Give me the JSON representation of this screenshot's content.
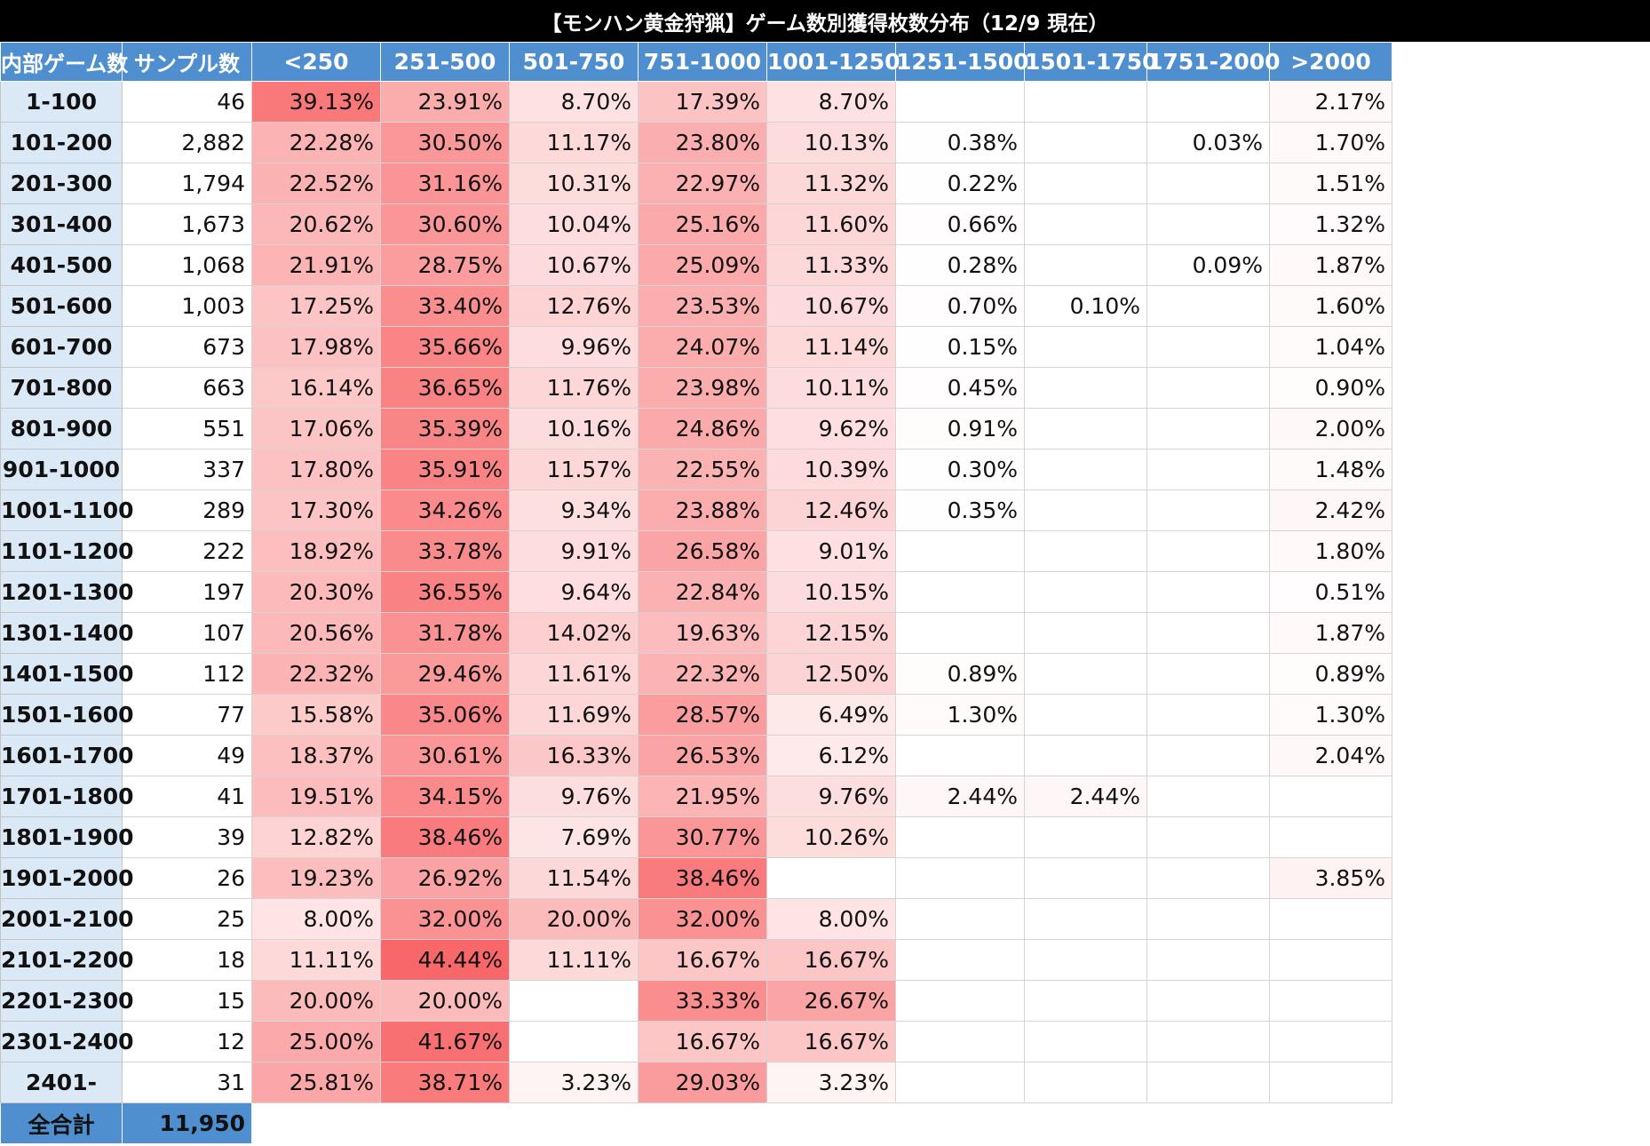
{
  "title": "【モンハン黄金狩猟】ゲーム数別獲得枚数分布（12/9 現在）",
  "headers": [
    "内部ゲーム数",
    "サンプル数",
    "<250",
    "251-500",
    "501-750",
    "751-1000",
    "1001-1250",
    "1251-1500",
    "1501-1750",
    "1751-2000",
    ">2000"
  ],
  "rows": [
    {
      "label": "1-100",
      "sample": "46",
      "cells": [
        "39.13%",
        "23.91%",
        "8.70%",
        "17.39%",
        "8.70%",
        "",
        "",
        "",
        "2.17%"
      ]
    },
    {
      "label": "101-200",
      "sample": "2,882",
      "cells": [
        "22.28%",
        "30.50%",
        "11.17%",
        "23.80%",
        "10.13%",
        "0.38%",
        "",
        "0.03%",
        "1.70%"
      ]
    },
    {
      "label": "201-300",
      "sample": "1,794",
      "cells": [
        "22.52%",
        "31.16%",
        "10.31%",
        "22.97%",
        "11.32%",
        "0.22%",
        "",
        "",
        "1.51%"
      ]
    },
    {
      "label": "301-400",
      "sample": "1,673",
      "cells": [
        "20.62%",
        "30.60%",
        "10.04%",
        "25.16%",
        "11.60%",
        "0.66%",
        "",
        "",
        "1.32%"
      ]
    },
    {
      "label": "401-500",
      "sample": "1,068",
      "cells": [
        "21.91%",
        "28.75%",
        "10.67%",
        "25.09%",
        "11.33%",
        "0.28%",
        "",
        "0.09%",
        "1.87%"
      ]
    },
    {
      "label": "501-600",
      "sample": "1,003",
      "cells": [
        "17.25%",
        "33.40%",
        "12.76%",
        "23.53%",
        "10.67%",
        "0.70%",
        "0.10%",
        "",
        "1.60%"
      ]
    },
    {
      "label": "601-700",
      "sample": "673",
      "cells": [
        "17.98%",
        "35.66%",
        "9.96%",
        "24.07%",
        "11.14%",
        "0.15%",
        "",
        "",
        "1.04%"
      ]
    },
    {
      "label": "701-800",
      "sample": "663",
      "cells": [
        "16.14%",
        "36.65%",
        "11.76%",
        "23.98%",
        "10.11%",
        "0.45%",
        "",
        "",
        "0.90%"
      ]
    },
    {
      "label": "801-900",
      "sample": "551",
      "cells": [
        "17.06%",
        "35.39%",
        "10.16%",
        "24.86%",
        "9.62%",
        "0.91%",
        "",
        "",
        "2.00%"
      ]
    },
    {
      "label": "901-1000",
      "sample": "337",
      "cells": [
        "17.80%",
        "35.91%",
        "11.57%",
        "22.55%",
        "10.39%",
        "0.30%",
        "",
        "",
        "1.48%"
      ]
    },
    {
      "label": "1001-1100",
      "sample": "289",
      "cells": [
        "17.30%",
        "34.26%",
        "9.34%",
        "23.88%",
        "12.46%",
        "0.35%",
        "",
        "",
        "2.42%"
      ]
    },
    {
      "label": "1101-1200",
      "sample": "222",
      "cells": [
        "18.92%",
        "33.78%",
        "9.91%",
        "26.58%",
        "9.01%",
        "",
        "",
        "",
        "1.80%"
      ]
    },
    {
      "label": "1201-1300",
      "sample": "197",
      "cells": [
        "20.30%",
        "36.55%",
        "9.64%",
        "22.84%",
        "10.15%",
        "",
        "",
        "",
        "0.51%"
      ]
    },
    {
      "label": "1301-1400",
      "sample": "107",
      "cells": [
        "20.56%",
        "31.78%",
        "14.02%",
        "19.63%",
        "12.15%",
        "",
        "",
        "",
        "1.87%"
      ]
    },
    {
      "label": "1401-1500",
      "sample": "112",
      "cells": [
        "22.32%",
        "29.46%",
        "11.61%",
        "22.32%",
        "12.50%",
        "0.89%",
        "",
        "",
        "0.89%"
      ]
    },
    {
      "label": "1501-1600",
      "sample": "77",
      "cells": [
        "15.58%",
        "35.06%",
        "11.69%",
        "28.57%",
        "6.49%",
        "1.30%",
        "",
        "",
        "1.30%"
      ]
    },
    {
      "label": "1601-1700",
      "sample": "49",
      "cells": [
        "18.37%",
        "30.61%",
        "16.33%",
        "26.53%",
        "6.12%",
        "",
        "",
        "",
        "2.04%"
      ]
    },
    {
      "label": "1701-1800",
      "sample": "41",
      "cells": [
        "19.51%",
        "34.15%",
        "9.76%",
        "21.95%",
        "9.76%",
        "2.44%",
        "2.44%",
        "",
        ""
      ]
    },
    {
      "label": "1801-1900",
      "sample": "39",
      "cells": [
        "12.82%",
        "38.46%",
        "7.69%",
        "30.77%",
        "10.26%",
        "",
        "",
        "",
        ""
      ]
    },
    {
      "label": "1901-2000",
      "sample": "26",
      "cells": [
        "19.23%",
        "26.92%",
        "11.54%",
        "38.46%",
        "",
        "",
        "",
        "",
        "3.85%"
      ]
    },
    {
      "label": "2001-2100",
      "sample": "25",
      "cells": [
        "8.00%",
        "32.00%",
        "20.00%",
        "32.00%",
        "8.00%",
        "",
        "",
        "",
        ""
      ]
    },
    {
      "label": "2101-2200",
      "sample": "18",
      "cells": [
        "11.11%",
        "44.44%",
        "11.11%",
        "16.67%",
        "16.67%",
        "",
        "",
        "",
        ""
      ]
    },
    {
      "label": "2201-2300",
      "sample": "15",
      "cells": [
        "20.00%",
        "20.00%",
        "",
        "33.33%",
        "26.67%",
        "",
        "",
        "",
        ""
      ]
    },
    {
      "label": "2301-2400",
      "sample": "12",
      "cells": [
        "25.00%",
        "41.67%",
        "",
        "16.67%",
        "16.67%",
        "",
        "",
        "",
        ""
      ]
    },
    {
      "label": "2401-",
      "sample": "31",
      "cells": [
        "25.81%",
        "38.71%",
        "3.23%",
        "29.03%",
        "3.23%",
        "",
        "",
        "",
        ""
      ]
    }
  ],
  "total": {
    "label": "全合計",
    "value": "11,950"
  },
  "colors": {
    "header_bg": "#4f8fd0",
    "label_bg": "#dbe8f5",
    "title_bg": "#000000",
    "heat_max": "#f86567",
    "heat_min": "#ffffff"
  }
}
